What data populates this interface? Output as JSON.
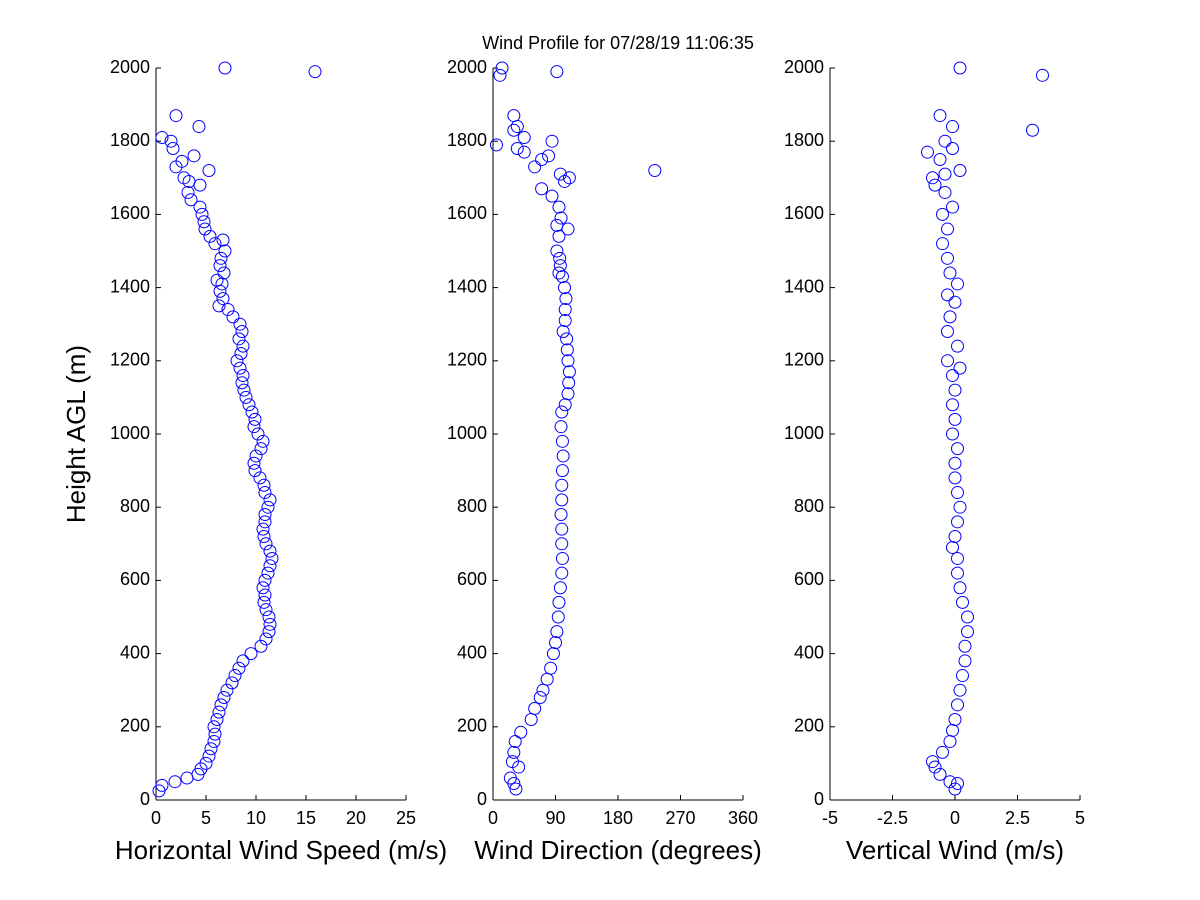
{
  "chart_data": [
    {
      "type": "scatter",
      "xlabel": "Horizontal Wind Speed (m/s)",
      "ylabel": "Height AGL (m)",
      "color": "#0000ff",
      "xlim": [
        0,
        25
      ],
      "xticks": [
        0,
        5,
        10,
        15,
        20,
        25
      ],
      "ylim": [
        0,
        2000
      ],
      "yticks": [
        0,
        200,
        400,
        600,
        800,
        1000,
        1200,
        1400,
        1600,
        1800,
        2000
      ],
      "x": [
        0.3,
        0.6,
        1.9,
        3.1,
        4.2,
        4.5,
        5,
        5.3,
        5.5,
        5.8,
        5.9,
        5.8,
        6.1,
        6.3,
        6.5,
        6.8,
        7.1,
        7.6,
        7.9,
        8.3,
        8.7,
        9.5,
        10.5,
        11,
        11.3,
        11.4,
        11.3,
        11,
        10.8,
        10.9,
        10.7,
        10.9,
        11.2,
        11.4,
        11.6,
        11.4,
        11,
        10.8,
        10.7,
        10.9,
        10.9,
        11.2,
        11.4,
        10.9,
        10.8,
        10.4,
        9.9,
        9.8,
        10,
        10.5,
        10.7,
        10.2,
        9.8,
        9.9,
        9.6,
        9.3,
        9,
        8.8,
        8.6,
        8.7,
        8.4,
        8.1,
        8.5,
        8.7,
        8.3,
        8.6,
        8.4,
        7.7,
        7.2,
        6.3,
        6.7,
        6.4,
        6.6,
        6.1,
        6.8,
        6.4,
        6.5,
        6.9,
        6.7,
        5.9,
        5.4,
        4.9,
        4.8,
        4.6,
        4.4,
        3.5,
        3.2,
        4.4,
        3.3,
        2.8,
        5.3,
        2,
        2.6,
        3.8,
        1.7,
        1.5,
        0.6,
        4.3,
        2,
        15.9,
        6.9
      ],
      "y": [
        25,
        40,
        50,
        60,
        70,
        85,
        100,
        120,
        140,
        160,
        180,
        200,
        220,
        240,
        260,
        280,
        300,
        320,
        340,
        360,
        380,
        400,
        420,
        440,
        460,
        480,
        500,
        520,
        540,
        560,
        580,
        600,
        620,
        640,
        660,
        680,
        700,
        720,
        740,
        760,
        780,
        800,
        820,
        840,
        860,
        880,
        900,
        920,
        940,
        960,
        980,
        1000,
        1020,
        1040,
        1060,
        1080,
        1100,
        1120,
        1140,
        1160,
        1180,
        1200,
        1220,
        1240,
        1260,
        1280,
        1300,
        1320,
        1340,
        1350,
        1370,
        1390,
        1410,
        1420,
        1440,
        1460,
        1480,
        1500,
        1530,
        1520,
        1540,
        1560,
        1580,
        1600,
        1620,
        1640,
        1660,
        1680,
        1690,
        1700,
        1720,
        1730,
        1745,
        1760,
        1780,
        1800,
        1810,
        1840,
        1870,
        1990,
        2000
      ]
    },
    {
      "type": "scatter",
      "title": "Wind Profile for  07/28/19 11:06:35",
      "xlabel": "Wind Direction (degrees)",
      "color": "#0000ff",
      "xlim": [
        0,
        360
      ],
      "xticks": [
        0,
        90,
        180,
        270,
        360
      ],
      "ylim": [
        0,
        2000
      ],
      "yticks": [
        0,
        200,
        400,
        600,
        800,
        1000,
        1200,
        1400,
        1600,
        1800,
        2000
      ],
      "x": [
        33,
        30,
        37,
        25,
        28,
        30,
        32,
        40,
        55,
        60,
        68,
        72,
        78,
        83,
        87,
        90,
        92,
        94,
        95,
        97,
        99,
        100,
        99,
        99,
        98,
        99,
        99,
        100,
        101,
        100,
        98,
        99,
        104,
        108,
        109,
        110,
        108,
        107,
        106,
        101,
        104,
        104,
        105,
        103,
        100,
        95,
        97,
        96,
        92,
        95,
        92,
        108,
        98,
        95,
        85,
        70,
        103,
        97,
        110,
        233,
        60,
        70,
        80,
        45,
        35,
        5,
        85,
        45,
        30,
        35,
        30,
        10,
        13,
        92
      ],
      "y": [
        30,
        45,
        90,
        60,
        105,
        130,
        160,
        185,
        220,
        250,
        280,
        300,
        330,
        360,
        400,
        430,
        460,
        500,
        540,
        580,
        620,
        660,
        700,
        740,
        780,
        820,
        860,
        900,
        940,
        980,
        1020,
        1060,
        1080,
        1110,
        1140,
        1170,
        1200,
        1230,
        1260,
        1280,
        1310,
        1340,
        1370,
        1400,
        1430,
        1440,
        1460,
        1480,
        1500,
        1540,
        1570,
        1560,
        1590,
        1620,
        1650,
        1670,
        1690,
        1710,
        1700,
        1720,
        1730,
        1750,
        1760,
        1770,
        1780,
        1790,
        1800,
        1810,
        1830,
        1840,
        1870,
        1980,
        2000,
        1990
      ]
    },
    {
      "type": "scatter",
      "xlabel": "Vertical Wind (m/s)",
      "color": "#0000ff",
      "xlim": [
        -5,
        5
      ],
      "xticks": [
        -5,
        -2.5,
        0,
        2.5,
        5
      ],
      "ylim": [
        0,
        2000
      ],
      "yticks": [
        0,
        200,
        400,
        600,
        800,
        1000,
        1200,
        1400,
        1600,
        1800,
        2000
      ],
      "x": [
        0,
        -0.2,
        0.1,
        -0.6,
        -0.8,
        -0.9,
        -0.5,
        -0.2,
        -0.1,
        0,
        0.1,
        0.2,
        0.3,
        0.4,
        0.4,
        0.5,
        0.5,
        0.3,
        0.2,
        0.1,
        0.1,
        -0.1,
        0,
        0.1,
        0.2,
        0.1,
        0,
        0,
        0.1,
        -0.1,
        0,
        -0.1,
        0,
        -0.1,
        0.2,
        -0.3,
        0.1,
        -0.3,
        -0.2,
        0,
        -0.3,
        0.1,
        -0.2,
        -0.3,
        -0.5,
        -0.3,
        -0.5,
        -0.1,
        -0.4,
        -0.8,
        -0.9,
        -0.4,
        0.2,
        -1.1,
        -0.6,
        -0.1,
        -0.4,
        -0.1,
        -0.6,
        3.1,
        3.5,
        0.2
      ],
      "y": [
        30,
        50,
        45,
        70,
        90,
        105,
        130,
        160,
        190,
        220,
        260,
        300,
        340,
        380,
        420,
        460,
        500,
        540,
        580,
        620,
        660,
        690,
        720,
        760,
        800,
        840,
        880,
        920,
        960,
        1000,
        1040,
        1080,
        1120,
        1160,
        1180,
        1200,
        1240,
        1280,
        1320,
        1360,
        1380,
        1410,
        1440,
        1480,
        1520,
        1560,
        1600,
        1620,
        1660,
        1680,
        1700,
        1710,
        1720,
        1770,
        1750,
        1780,
        1800,
        1840,
        1870,
        1830,
        1980,
        2000
      ]
    }
  ]
}
